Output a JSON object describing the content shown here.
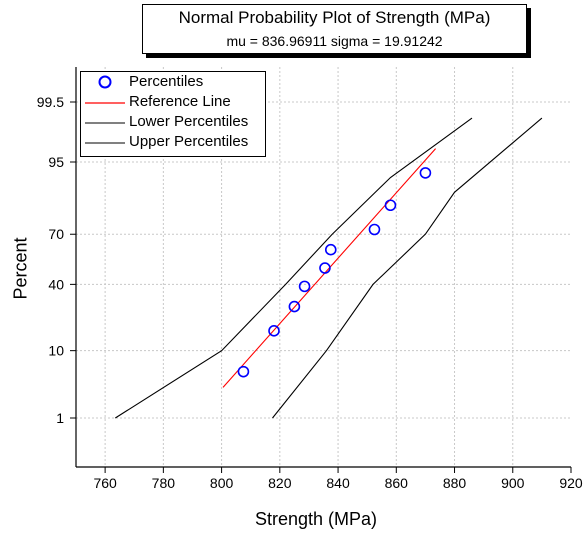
{
  "chart_data": {
    "type": "scatter",
    "title": "Normal Probability Plot of Strength (MPa)",
    "subtitle": "mu = 836.96911  sigma = 19.91242",
    "xlabel": "Strength (MPa)",
    "ylabel": "Percent",
    "xlim": [
      750,
      920
    ],
    "x_ticks": [
      760,
      780,
      800,
      820,
      840,
      860,
      880,
      900,
      920
    ],
    "y_tick_labels": [
      "1",
      "10",
      "40",
      "70",
      "95",
      "99.5"
    ],
    "y_scale": "normal probability",
    "grid": true,
    "legend_position": "top-left",
    "mu": 836.96911,
    "sigma": 19.91242,
    "series": [
      {
        "name": "Percentiles",
        "style": "circle",
        "color": "#0000ff",
        "points": [
          {
            "x": 807.5,
            "y": 5.4
          },
          {
            "x": 818.0,
            "y": 16.5
          },
          {
            "x": 825.0,
            "y": 27.5
          },
          {
            "x": 828.5,
            "y": 38.8
          },
          {
            "x": 835.5,
            "y": 50.0
          },
          {
            "x": 837.5,
            "y": 61.2
          },
          {
            "x": 852.5,
            "y": 72.5
          },
          {
            "x": 858.0,
            "y": 83.5
          },
          {
            "x": 870.0,
            "y": 93.0
          }
        ]
      },
      {
        "name": "Reference Line",
        "style": "line",
        "color": "#ff0000",
        "points": [
          {
            "x": 800.5,
            "y": 3.2
          },
          {
            "x": 873.5,
            "y": 96.8
          }
        ]
      },
      {
        "name": "Lower Percentiles",
        "style": "line",
        "color": "#000000",
        "points": [
          {
            "x": 763.5,
            "y": 1.0
          },
          {
            "x": 800.0,
            "y": 10.0
          },
          {
            "x": 822.0,
            "y": 40.0
          },
          {
            "x": 838.0,
            "y": 70.0
          },
          {
            "x": 858.0,
            "y": 92.0
          },
          {
            "x": 886.0,
            "y": 99.0
          }
        ]
      },
      {
        "name": "Upper Percentiles",
        "style": "line",
        "color": "#000000",
        "points": [
          {
            "x": 817.5,
            "y": 1.0
          },
          {
            "x": 836.0,
            "y": 10.0
          },
          {
            "x": 852.0,
            "y": 40.0
          },
          {
            "x": 870.0,
            "y": 70.0
          },
          {
            "x": 880.0,
            "y": 88.0
          },
          {
            "x": 910.0,
            "y": 99.0
          }
        ]
      }
    ]
  }
}
